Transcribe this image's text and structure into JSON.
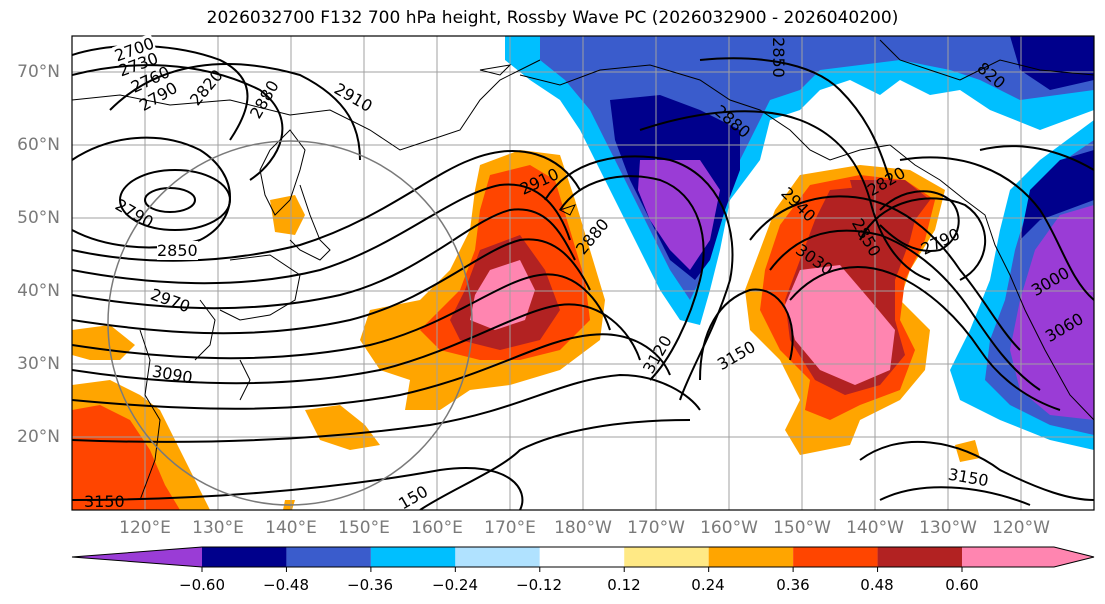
{
  "title": "2026032700 F132 700 hPa height, Rossby Wave PC (2026032900 - 2026040200)",
  "lat_labels": [
    "70°N",
    "60°N",
    "50°N",
    "40°N",
    "30°N",
    "20°N"
  ],
  "lon_labels": [
    "120°E",
    "130°E",
    "140°E",
    "150°E",
    "160°E",
    "170°E",
    "180°W",
    "170°W",
    "160°W",
    "150°W",
    "140°W",
    "130°W",
    "120°W"
  ],
  "colorbar": {
    "ticks": [
      "−0.60",
      "−0.48",
      "−0.36",
      "−0.24",
      "−0.12",
      "0.12",
      "0.24",
      "0.36",
      "0.48",
      "0.60"
    ],
    "colors": [
      "#9a3cd6",
      "#00008c",
      "#3a5ccc",
      "#00bfff",
      "#b0e2ff",
      "#ffffff",
      "#ffe985",
      "#ffa500",
      "#ff4500",
      "#b22222",
      "#ff85b0"
    ]
  },
  "contour_labels": [
    "2700",
    "2730",
    "2760",
    "2790",
    "2820",
    "2880",
    "2910",
    "2850",
    "2790",
    "2850",
    "2970",
    "3090",
    "3150",
    "150",
    "2910",
    "2880",
    "3120",
    "3150",
    "2850",
    "2880",
    "2820",
    "2940",
    "3030",
    "2850",
    "2820",
    "2790",
    "3000",
    "3060",
    "3150",
    "820"
  ]
}
